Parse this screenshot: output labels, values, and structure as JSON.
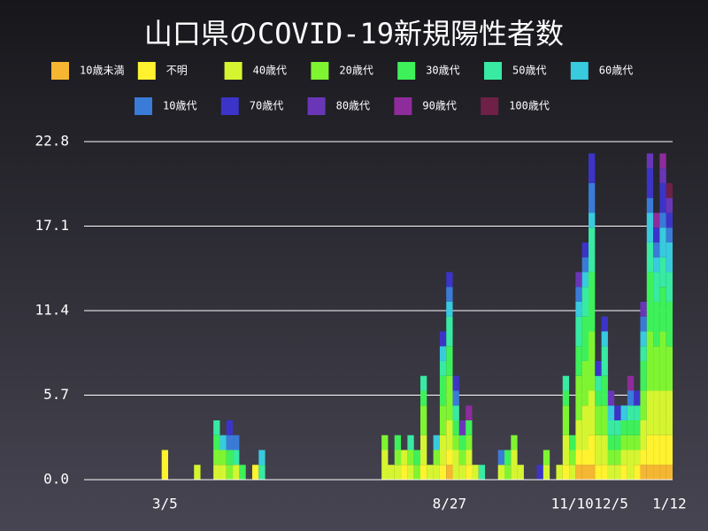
{
  "chart_data": {
    "type": "bar",
    "stacked": true,
    "title": "山口県のCOVID-19新規陽性者数",
    "categories": [
      null,
      null,
      null,
      null,
      null,
      null,
      null,
      null,
      null,
      null,
      null,
      null,
      "3/5",
      null,
      null,
      null,
      null,
      null,
      null,
      null,
      null,
      null,
      null,
      null,
      null,
      null,
      null,
      null,
      null,
      null,
      null,
      null,
      null,
      null,
      null,
      null,
      null,
      null,
      null,
      null,
      null,
      null,
      null,
      null,
      null,
      null,
      null,
      null,
      null,
      null,
      null,
      null,
      null,
      null,
      null,
      null,
      "8/27",
      null,
      null,
      null,
      null,
      null,
      null,
      null,
      null,
      null,
      null,
      null,
      null,
      null,
      null,
      null,
      null,
      null,
      null,
      "11/10",
      null,
      null,
      null,
      null,
      null,
      "12/5",
      null,
      null,
      null,
      null,
      null,
      null,
      null,
      null,
      "1/12"
    ],
    "ylim": [
      0,
      22.8
    ],
    "yticks": [
      {
        "value": 0,
        "label": "0.0"
      },
      5.7,
      11.4,
      17.1,
      22.8
    ],
    "grid": true,
    "series": [
      {
        "name": "10歳未満",
        "color": "#f5b631",
        "values": [
          0,
          0,
          0,
          0,
          0,
          0,
          0,
          0,
          0,
          0,
          0,
          0,
          0,
          0,
          0,
          0,
          0,
          0,
          0,
          0,
          0,
          0,
          0,
          0,
          0,
          0,
          0,
          0,
          0,
          0,
          0,
          0,
          0,
          0,
          0,
          0,
          0,
          0,
          0,
          0,
          0,
          0,
          0,
          0,
          0,
          0,
          0,
          0,
          0,
          0,
          0,
          0,
          0,
          0,
          0,
          0,
          1,
          0,
          0,
          0,
          0,
          0,
          0,
          0,
          0,
          0,
          0,
          0,
          0,
          0,
          0,
          0,
          0,
          0,
          0,
          0,
          1,
          1,
          1,
          0,
          0,
          0,
          0,
          0,
          0,
          0,
          1,
          1,
          1,
          1,
          1
        ]
      },
      {
        "name": "不明",
        "color": "#fff22f",
        "values": [
          0,
          0,
          0,
          0,
          0,
          0,
          0,
          0,
          0,
          0,
          0,
          0,
          2,
          0,
          0,
          0,
          0,
          0,
          0,
          0,
          0,
          0,
          0,
          0,
          0,
          0,
          1,
          0,
          0,
          0,
          0,
          0,
          0,
          0,
          0,
          0,
          0,
          0,
          0,
          0,
          0,
          0,
          0,
          0,
          0,
          0,
          0,
          0,
          0,
          1,
          0,
          0,
          1,
          0,
          0,
          1,
          1,
          0,
          0,
          1,
          0,
          0,
          0,
          0,
          0,
          0,
          0,
          0,
          0,
          0,
          0,
          0,
          0,
          0,
          1,
          0,
          1,
          1,
          2,
          1,
          1,
          0,
          0,
          1,
          0,
          1,
          1,
          2,
          2,
          2,
          2
        ]
      },
      {
        "name": "40歳代",
        "color": "#d6f531",
        "values": [
          0,
          0,
          0,
          0,
          0,
          0,
          0,
          0,
          0,
          0,
          0,
          0,
          0,
          0,
          0,
          0,
          0,
          1,
          0,
          0,
          1,
          1,
          0,
          1,
          0,
          0,
          0,
          0,
          0,
          0,
          0,
          0,
          0,
          0,
          0,
          0,
          0,
          0,
          0,
          0,
          0,
          0,
          0,
          0,
          0,
          0,
          2,
          1,
          1,
          1,
          1,
          0,
          2,
          1,
          1,
          2,
          2,
          2,
          1,
          1,
          1,
          0,
          0,
          0,
          1,
          0,
          2,
          1,
          0,
          0,
          0,
          1,
          0,
          1,
          2,
          1,
          2,
          3,
          3,
          2,
          2,
          1,
          1,
          1,
          2,
          1,
          2,
          3,
          3,
          3,
          3
        ]
      },
      {
        "name": "20歳代",
        "color": "#7ff532",
        "values": [
          0,
          0,
          0,
          0,
          0,
          0,
          0,
          0,
          0,
          0,
          0,
          0,
          0,
          0,
          0,
          0,
          0,
          0,
          0,
          0,
          1,
          1,
          1,
          0,
          0,
          0,
          0,
          0,
          0,
          0,
          0,
          0,
          0,
          0,
          0,
          0,
          0,
          0,
          0,
          0,
          0,
          0,
          0,
          0,
          0,
          0,
          1,
          0,
          1,
          0,
          1,
          1,
          2,
          0,
          1,
          2,
          3,
          1,
          1,
          1,
          0,
          0,
          0,
          0,
          0,
          1,
          1,
          0,
          0,
          0,
          0,
          1,
          0,
          0,
          2,
          1,
          3,
          3,
          4,
          2,
          2,
          1,
          1,
          1,
          1,
          1,
          2,
          4,
          3,
          4,
          3
        ]
      },
      {
        "name": "30歳代",
        "color": "#3ef05a",
        "values": [
          0,
          0,
          0,
          0,
          0,
          0,
          0,
          0,
          0,
          0,
          0,
          0,
          0,
          0,
          0,
          0,
          0,
          0,
          0,
          0,
          1,
          0,
          1,
          0,
          1,
          0,
          0,
          0,
          0,
          0,
          0,
          0,
          0,
          0,
          0,
          0,
          0,
          0,
          0,
          0,
          0,
          0,
          0,
          0,
          0,
          0,
          0,
          0,
          1,
          0,
          0,
          1,
          1,
          0,
          0,
          2,
          2,
          1,
          1,
          1,
          0,
          0,
          0,
          0,
          0,
          1,
          0,
          0,
          0,
          0,
          0,
          0,
          0,
          0,
          1,
          1,
          2,
          3,
          4,
          1,
          2,
          1,
          1,
          1,
          1,
          1,
          2,
          4,
          3,
          3,
          3
        ]
      },
      {
        "name": "50歳代",
        "color": "#38eaa2",
        "values": [
          0,
          0,
          0,
          0,
          0,
          0,
          0,
          0,
          0,
          0,
          0,
          0,
          0,
          0,
          0,
          0,
          0,
          0,
          0,
          0,
          1,
          0,
          0,
          1,
          0,
          0,
          0,
          1,
          0,
          0,
          0,
          0,
          0,
          0,
          0,
          0,
          0,
          0,
          0,
          0,
          0,
          0,
          0,
          0,
          0,
          0,
          0,
          0,
          0,
          0,
          1,
          0,
          1,
          0,
          0,
          1,
          2,
          1,
          0,
          0,
          0,
          1,
          0,
          0,
          0,
          0,
          0,
          0,
          0,
          0,
          0,
          0,
          0,
          0,
          1,
          0,
          2,
          2,
          3,
          1,
          2,
          1,
          1,
          0,
          1,
          1,
          1,
          2,
          2,
          2,
          2
        ]
      },
      {
        "name": "60歳代",
        "color": "#38cade",
        "values": [
          0,
          0,
          0,
          0,
          0,
          0,
          0,
          0,
          0,
          0,
          0,
          0,
          0,
          0,
          0,
          0,
          0,
          0,
          0,
          0,
          0,
          1,
          0,
          0,
          0,
          0,
          0,
          1,
          0,
          0,
          0,
          0,
          0,
          0,
          0,
          0,
          0,
          0,
          0,
          0,
          0,
          0,
          0,
          0,
          0,
          0,
          0,
          0,
          0,
          0,
          0,
          0,
          0,
          0,
          1,
          1,
          1,
          0,
          0,
          0,
          0,
          0,
          0,
          0,
          0,
          0,
          0,
          0,
          0,
          0,
          0,
          0,
          0,
          0,
          0,
          0,
          1,
          1,
          1,
          0,
          1,
          1,
          0,
          1,
          0,
          0,
          1,
          2,
          1,
          2,
          2
        ]
      },
      {
        "name": "10歳代",
        "color": "#3a7bd8",
        "values": [
          0,
          0,
          0,
          0,
          0,
          0,
          0,
          0,
          0,
          0,
          0,
          0,
          0,
          0,
          0,
          0,
          0,
          0,
          0,
          0,
          0,
          0,
          1,
          1,
          0,
          0,
          0,
          0,
          0,
          0,
          0,
          0,
          0,
          0,
          0,
          0,
          0,
          0,
          0,
          0,
          0,
          0,
          0,
          0,
          0,
          0,
          0,
          0,
          0,
          0,
          0,
          0,
          0,
          0,
          0,
          0,
          1,
          1,
          0,
          0,
          0,
          0,
          0,
          0,
          1,
          0,
          0,
          0,
          0,
          0,
          0,
          0,
          0,
          0,
          0,
          0,
          1,
          1,
          2,
          0,
          0,
          0,
          0,
          0,
          1,
          0,
          1,
          1,
          1,
          1,
          1
        ]
      },
      {
        "name": "70歳代",
        "color": "#3c34c8",
        "values": [
          0,
          0,
          0,
          0,
          0,
          0,
          0,
          0,
          0,
          0,
          0,
          0,
          0,
          0,
          0,
          0,
          0,
          0,
          0,
          0,
          0,
          0,
          1,
          0,
          0,
          0,
          0,
          0,
          0,
          0,
          0,
          0,
          0,
          0,
          0,
          0,
          0,
          0,
          0,
          0,
          0,
          0,
          0,
          0,
          0,
          0,
          0,
          0,
          0,
          0,
          0,
          0,
          0,
          0,
          0,
          1,
          1,
          1,
          0,
          0,
          0,
          0,
          0,
          0,
          0,
          0,
          0,
          0,
          0,
          0,
          1,
          0,
          0,
          0,
          0,
          0,
          0,
          1,
          2,
          1,
          1,
          0,
          1,
          0,
          0,
          1,
          0,
          2,
          1,
          2,
          1
        ]
      },
      {
        "name": "80歳代",
        "color": "#6a36b8",
        "values": [
          0,
          0,
          0,
          0,
          0,
          0,
          0,
          0,
          0,
          0,
          0,
          0,
          0,
          0,
          0,
          0,
          0,
          0,
          0,
          0,
          0,
          0,
          0,
          0,
          0,
          0,
          0,
          0,
          0,
          0,
          0,
          0,
          0,
          0,
          0,
          0,
          0,
          0,
          0,
          0,
          0,
          0,
          0,
          0,
          0,
          0,
          0,
          0,
          0,
          0,
          0,
          0,
          0,
          0,
          0,
          0,
          0,
          0,
          1,
          0,
          0,
          0,
          0,
          0,
          0,
          0,
          0,
          0,
          0,
          0,
          0,
          0,
          0,
          0,
          0,
          0,
          1,
          0,
          0,
          0,
          0,
          1,
          0,
          0,
          0,
          0,
          1,
          1,
          0,
          1,
          1
        ]
      },
      {
        "name": "90歳代",
        "color": "#8e2c9c",
        "values": [
          0,
          0,
          0,
          0,
          0,
          0,
          0,
          0,
          0,
          0,
          0,
          0,
          0,
          0,
          0,
          0,
          0,
          0,
          0,
          0,
          0,
          0,
          0,
          0,
          0,
          0,
          0,
          0,
          0,
          0,
          0,
          0,
          0,
          0,
          0,
          0,
          0,
          0,
          0,
          0,
          0,
          0,
          0,
          0,
          0,
          0,
          0,
          0,
          0,
          0,
          0,
          0,
          0,
          0,
          0,
          0,
          0,
          0,
          0,
          1,
          0,
          0,
          0,
          0,
          0,
          0,
          0,
          0,
          0,
          0,
          0,
          0,
          0,
          0,
          0,
          0,
          0,
          0,
          0,
          0,
          0,
          0,
          0,
          0,
          1,
          0,
          0,
          0,
          1,
          1,
          0
        ]
      },
      {
        "name": "100歳代",
        "color": "#6e2046",
        "values": [
          0,
          0,
          0,
          0,
          0,
          0,
          0,
          0,
          0,
          0,
          0,
          0,
          0,
          0,
          0,
          0,
          0,
          0,
          0,
          0,
          0,
          0,
          0,
          0,
          0,
          0,
          0,
          0,
          0,
          0,
          0,
          0,
          0,
          0,
          0,
          0,
          0,
          0,
          0,
          0,
          0,
          0,
          0,
          0,
          0,
          0,
          0,
          0,
          0,
          0,
          0,
          0,
          0,
          0,
          0,
          0,
          0,
          0,
          0,
          0,
          0,
          0,
          0,
          0,
          0,
          0,
          0,
          0,
          0,
          0,
          0,
          0,
          0,
          0,
          0,
          0,
          0,
          0,
          0,
          0,
          0,
          0,
          0,
          0,
          0,
          0,
          0,
          0,
          0,
          0,
          1
        ]
      }
    ]
  }
}
